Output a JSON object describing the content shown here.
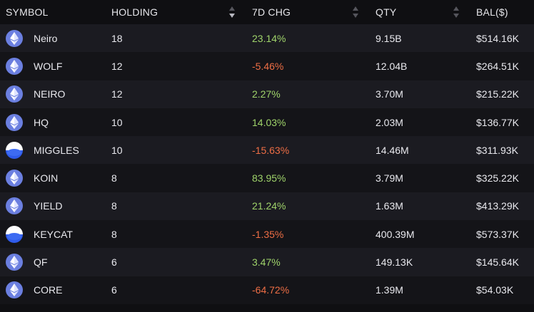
{
  "header": {
    "symbol": "SYMBOL",
    "holding": "HOLDING",
    "chg": "7D CHG",
    "qty": "QTY",
    "bal": "BAL($)"
  },
  "colors": {
    "positive": "#9fd36a",
    "negative": "#ee6e45",
    "eth_icon": "#6b7fe0"
  },
  "rows": [
    {
      "symbol": "Neiro",
      "icon": "eth-icon",
      "holding": "18",
      "chg": "23.14%",
      "trend": "pos",
      "qty": "9.15B",
      "bal": "$514.16K"
    },
    {
      "symbol": "WOLF",
      "icon": "eth-icon",
      "holding": "12",
      "chg": "-5.46%",
      "trend": "neg",
      "qty": "12.04B",
      "bal": "$264.51K"
    },
    {
      "symbol": "NEIRO",
      "icon": "eth-icon",
      "holding": "12",
      "chg": "2.27%",
      "trend": "pos",
      "qty": "3.70M",
      "bal": "$215.22K"
    },
    {
      "symbol": "HQ",
      "icon": "eth-icon",
      "holding": "10",
      "chg": "14.03%",
      "trend": "pos",
      "qty": "2.03M",
      "bal": "$136.77K"
    },
    {
      "symbol": "MIGGLES",
      "icon": "half-blue-icon",
      "holding": "10",
      "chg": "-15.63%",
      "trend": "neg",
      "qty": "14.46M",
      "bal": "$311.93K"
    },
    {
      "symbol": "KOIN",
      "icon": "eth-icon",
      "holding": "8",
      "chg": "83.95%",
      "trend": "pos",
      "qty": "3.79M",
      "bal": "$325.22K"
    },
    {
      "symbol": "YIELD",
      "icon": "eth-icon",
      "holding": "8",
      "chg": "21.24%",
      "trend": "pos",
      "qty": "1.63M",
      "bal": "$413.29K"
    },
    {
      "symbol": "KEYCAT",
      "icon": "half-blue-icon",
      "holding": "8",
      "chg": "-1.35%",
      "trend": "neg",
      "qty": "400.39M",
      "bal": "$573.37K"
    },
    {
      "symbol": "QF",
      "icon": "eth-icon",
      "holding": "6",
      "chg": "3.47%",
      "trend": "pos",
      "qty": "149.13K",
      "bal": "$145.64K"
    },
    {
      "symbol": "CORE",
      "icon": "eth-icon",
      "holding": "6",
      "chg": "-64.72%",
      "trend": "neg",
      "qty": "1.39M",
      "bal": "$54.03K"
    }
  ]
}
